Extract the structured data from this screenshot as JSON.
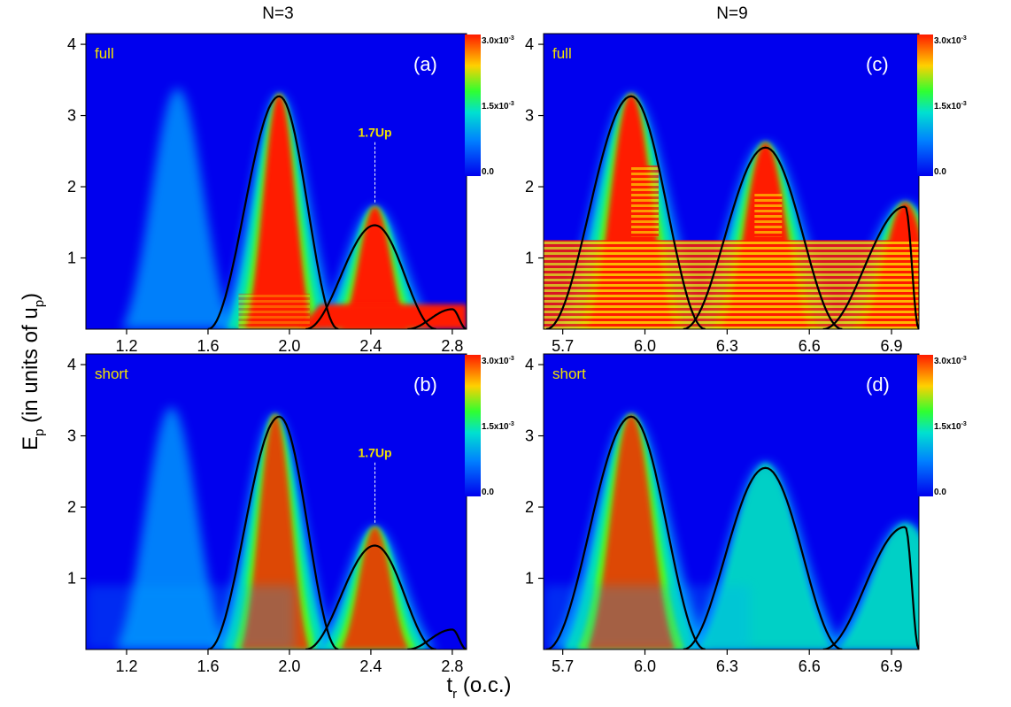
{
  "figure": {
    "y_axis_label": "E",
    "y_axis_label_sub": "p",
    "y_axis_label_rest": " (in units of u",
    "y_axis_label_rest_sub": "p",
    "y_axis_label_close": ")",
    "x_axis_label": "t",
    "x_axis_label_sub": "r",
    "x_axis_label_rest": " (o.c.)",
    "colors": {
      "background": "#0000ee",
      "low": "#00aaff",
      "mid": "#00e8b0",
      "high": "#66ff00",
      "saturated": "#ff1a00",
      "curve": "#000000",
      "annotation": "#f2e200"
    }
  },
  "chart_data": [
    {
      "id": "a",
      "type": "heatmap",
      "column_title": "N=3",
      "panel_id": "(a)",
      "panel_label": "full",
      "xlim": [
        1.0,
        2.87
      ],
      "ylim": [
        0,
        4.15
      ],
      "xticks": [
        "1.2",
        "1.6",
        "2.0",
        "2.4",
        "2.8"
      ],
      "yticks": [
        "1",
        "2",
        "3",
        "4"
      ],
      "colorbar": {
        "max_mantissa": "3.0x10",
        "max_exp": "-3",
        "mid_mantissa": "1.5x10",
        "mid_exp": "-3",
        "min": "0.0"
      },
      "annotation": {
        "text": "1.7Up",
        "x": 2.42,
        "y": 1.78
      },
      "classical_curves": [
        {
          "peak_t": 1.95,
          "peak_E": 3.27,
          "start_t": 1.6,
          "end_t": 2.24
        },
        {
          "peak_t": 2.42,
          "peak_E": 1.46,
          "start_t": 2.08,
          "end_t": 2.72
        },
        {
          "peak_t": 2.8,
          "peak_E": 0.28,
          "start_t": 2.58,
          "end_t": 2.87
        }
      ],
      "intensity_ridges": [
        {
          "center_t": 1.45,
          "peak_E": 3.38,
          "strength": "low"
        },
        {
          "center_t": 1.95,
          "peak_E": 3.3,
          "strength": "high"
        },
        {
          "center_t": 2.42,
          "peak_E": 1.72,
          "strength": "high"
        }
      ]
    },
    {
      "id": "b",
      "type": "heatmap",
      "column_title": "",
      "panel_id": "(b)",
      "panel_label": "short",
      "xlim": [
        1.0,
        2.87
      ],
      "ylim": [
        0,
        4.15
      ],
      "xticks": [
        "1.2",
        "1.6",
        "2.0",
        "2.4",
        "2.8"
      ],
      "yticks": [
        "1",
        "2",
        "3",
        "4"
      ],
      "colorbar": {
        "max_mantissa": "3.0x10",
        "max_exp": "-3",
        "mid_mantissa": "1.5x10",
        "mid_exp": "-3",
        "min": "0.0"
      },
      "annotation": {
        "text": "1.7Up",
        "x": 2.42,
        "y": 1.78
      },
      "classical_curves": [
        {
          "peak_t": 1.95,
          "peak_E": 3.27,
          "start_t": 1.6,
          "end_t": 2.24
        },
        {
          "peak_t": 2.42,
          "peak_E": 1.46,
          "start_t": 2.08,
          "end_t": 2.72
        },
        {
          "peak_t": 2.8,
          "peak_E": 0.28,
          "start_t": 2.58,
          "end_t": 2.87
        }
      ],
      "intensity_ridges": [
        {
          "center_t": 1.42,
          "peak_E": 3.4,
          "strength": "low"
        },
        {
          "center_t": 1.93,
          "peak_E": 3.3,
          "strength": "high"
        },
        {
          "center_t": 2.42,
          "peak_E": 1.72,
          "strength": "high"
        }
      ]
    },
    {
      "id": "c",
      "type": "heatmap",
      "column_title": "N=9",
      "panel_id": "(c)",
      "panel_label": "full",
      "xlim": [
        5.63,
        7.0
      ],
      "ylim": [
        0,
        4.15
      ],
      "xticks": [
        "5.7",
        "6.0",
        "6.3",
        "6.6",
        "6.9"
      ],
      "yticks": [
        "1",
        "2",
        "3",
        "4"
      ],
      "colorbar": {
        "max_mantissa": "3.0x10",
        "max_exp": "-3",
        "mid_mantissa": "1.5x10",
        "mid_exp": "-3",
        "min": "0.0"
      },
      "classical_curves": [
        {
          "peak_t": 5.95,
          "peak_E": 3.27,
          "start_t": 5.64,
          "end_t": 6.22
        },
        {
          "peak_t": 6.44,
          "peak_E": 2.55,
          "start_t": 6.14,
          "end_t": 6.72
        },
        {
          "peak_t": 6.95,
          "peak_E": 1.72,
          "start_t": 6.65,
          "end_t": 7.0
        }
      ],
      "intensity_ridges": [
        {
          "center_t": 5.95,
          "peak_E": 3.3,
          "strength": "high"
        },
        {
          "center_t": 6.44,
          "peak_E": 2.62,
          "strength": "high"
        },
        {
          "center_t": 6.95,
          "peak_E": 1.78,
          "strength": "high"
        }
      ]
    },
    {
      "id": "d",
      "type": "heatmap",
      "column_title": "",
      "panel_id": "(d)",
      "panel_label": "short",
      "xlim": [
        5.63,
        7.0
      ],
      "ylim": [
        0,
        4.15
      ],
      "xticks": [
        "5.7",
        "6.0",
        "6.3",
        "6.6",
        "6.9"
      ],
      "yticks": [
        "1",
        "2",
        "3",
        "4"
      ],
      "colorbar": {
        "max_mantissa": "3.0x10",
        "max_exp": "-3",
        "mid_mantissa": "1.5x10",
        "mid_exp": "-3",
        "min": "0.0"
      },
      "classical_curves": [
        {
          "peak_t": 5.95,
          "peak_E": 3.27,
          "start_t": 5.64,
          "end_t": 6.22
        },
        {
          "peak_t": 6.44,
          "peak_E": 2.55,
          "start_t": 6.14,
          "end_t": 6.72
        },
        {
          "peak_t": 6.95,
          "peak_E": 1.72,
          "start_t": 6.65,
          "end_t": 7.0
        }
      ],
      "intensity_ridges": [
        {
          "center_t": 5.95,
          "peak_E": 3.3,
          "strength": "high"
        },
        {
          "center_t": 6.44,
          "peak_E": 2.62,
          "strength": "medium"
        },
        {
          "center_t": 6.95,
          "peak_E": 1.78,
          "strength": "medium"
        }
      ]
    }
  ]
}
